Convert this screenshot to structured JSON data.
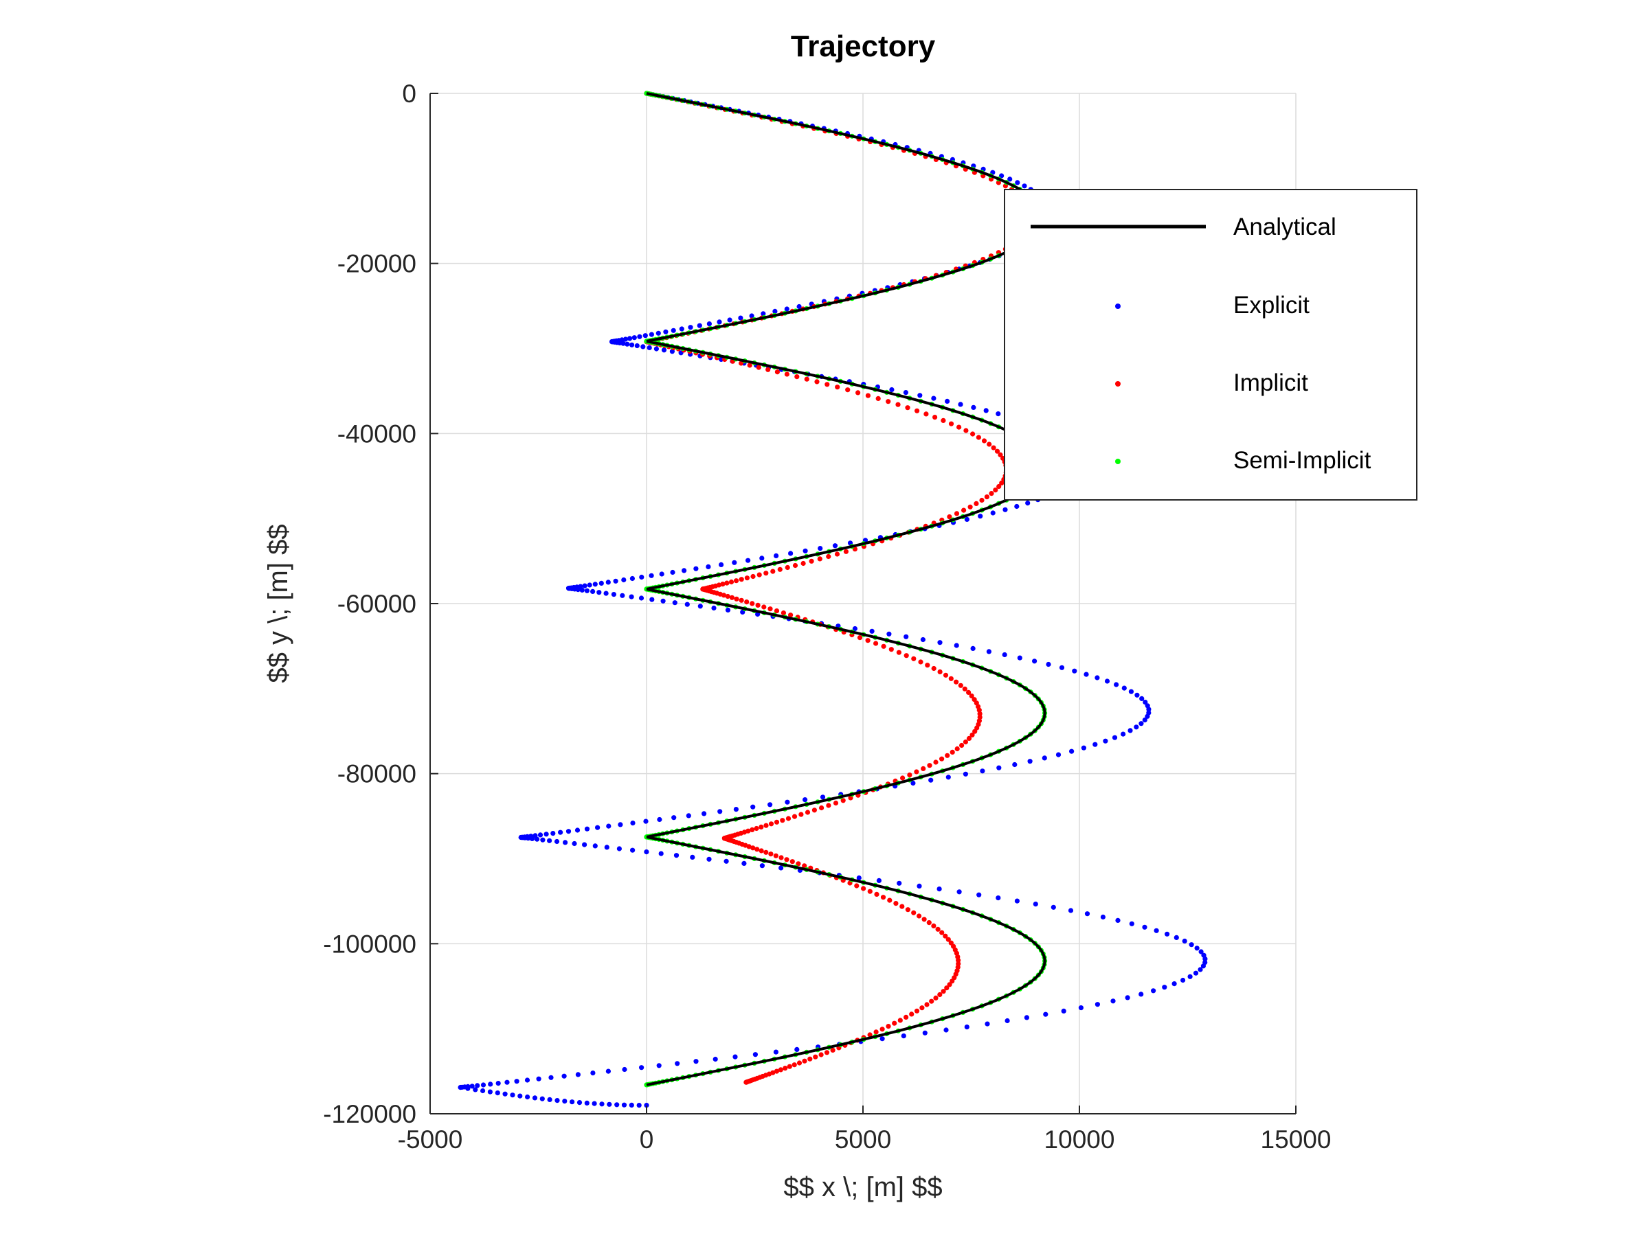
{
  "chart_data": {
    "type": "scatter",
    "title": "Trajectory",
    "xlabel": "$$ x \\; [m] $$",
    "ylabel": "$$ y \\; [m] $$",
    "xlim": [
      -5000,
      15000
    ],
    "ylim": [
      -120000,
      0
    ],
    "xticks": [
      -5000,
      0,
      5000,
      10000,
      15000
    ],
    "yticks": [
      0,
      -20000,
      -40000,
      -60000,
      -80000,
      -100000,
      -120000
    ],
    "xtick_labels": [
      "-5000",
      "0",
      "5000",
      "10000",
      "15000"
    ],
    "ytick_labels": [
      "0",
      "-20000",
      "-40000",
      "-60000",
      "-80000",
      "-100000",
      "-120000"
    ],
    "grid": true,
    "legend_position": "top-right",
    "series": [
      {
        "name": "Analytical",
        "style": "line",
        "color": "#000000",
        "arcs": [
          {
            "y_start": 0,
            "y_end": -29150,
            "x_max": 9200
          },
          {
            "y_start": -29150,
            "y_end": -58300,
            "x_max": 9200
          },
          {
            "y_start": -58300,
            "y_end": -87450,
            "x_max": 9200
          },
          {
            "y_start": -87450,
            "y_end": -116600,
            "x_max": 9200
          }
        ]
      },
      {
        "name": "Explicit",
        "style": "dots",
        "color": "#0000ff",
        "arcs": [
          {
            "y_start": 0,
            "y_end": -29200,
            "x_start": 0,
            "x_max": 9400,
            "x_end": -800
          },
          {
            "y_start": -29200,
            "y_end": -58200,
            "x_start": -800,
            "x_max": 10300,
            "x_end": -1800
          },
          {
            "y_start": -58200,
            "y_end": -87500,
            "x_start": -1800,
            "x_max": 11600,
            "x_end": -2900
          },
          {
            "y_start": -87500,
            "y_end": -116900,
            "x_start": -2900,
            "x_max": 12900,
            "x_end": -4300
          }
        ],
        "tail": {
          "x_end": 0,
          "y_end": -119000
        }
      },
      {
        "name": "Implicit",
        "style": "dots",
        "color": "#ff0000",
        "arcs": [
          {
            "y_start": 0,
            "y_end": -29200,
            "x_start": 0,
            "x_max": 9000,
            "x_end": 0
          },
          {
            "y_start": -29200,
            "y_end": -58300,
            "x_start": 0,
            "x_max": 8300,
            "x_end": 1300
          },
          {
            "y_start": -58300,
            "y_end": -87600,
            "x_start": 1300,
            "x_max": 7700,
            "x_end": 1800
          },
          {
            "y_start": -87600,
            "y_end": -116300,
            "x_start": 1800,
            "x_max": 7200,
            "x_end": 2300
          }
        ]
      },
      {
        "name": "Semi-Implicit",
        "style": "dots",
        "color": "#00ff00",
        "arcs": [
          {
            "y_start": 0,
            "y_end": -29150,
            "x_start": 0,
            "x_max": 9200,
            "x_end": 0
          },
          {
            "y_start": -29150,
            "y_end": -58300,
            "x_start": 0,
            "x_max": 9200,
            "x_end": 0
          },
          {
            "y_start": -58300,
            "y_end": -87450,
            "x_start": 0,
            "x_max": 9200,
            "x_end": 0
          },
          {
            "y_start": -87450,
            "y_end": -116600,
            "x_start": 0,
            "x_max": 9200,
            "x_end": 0
          }
        ]
      }
    ]
  }
}
